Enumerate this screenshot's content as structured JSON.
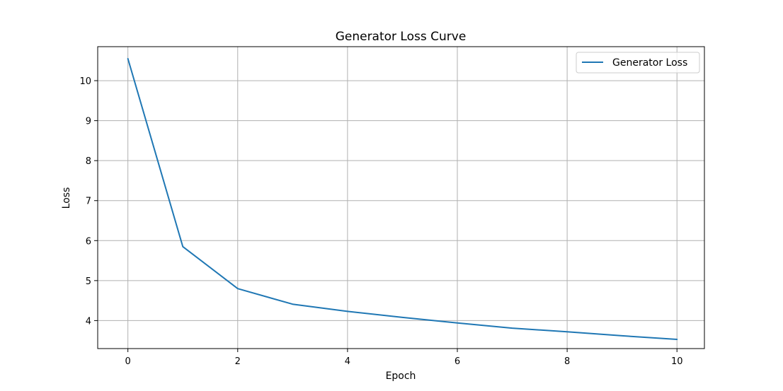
{
  "chart_data": {
    "type": "line",
    "title": "Generator Loss Curve",
    "xlabel": "Epoch",
    "ylabel": "Loss",
    "xlim": [
      -0.55,
      10.5
    ],
    "ylim": [
      3.3,
      10.85
    ],
    "xticks": [
      0,
      2,
      4,
      6,
      8,
      10
    ],
    "yticks": [
      4,
      5,
      6,
      7,
      8,
      9,
      10
    ],
    "grid": true,
    "legend_position": "top-right",
    "series": [
      {
        "name": "Generator Loss",
        "color": "#1f77b4",
        "x": [
          0,
          1,
          2,
          3,
          4,
          5,
          6,
          7,
          8,
          9,
          10
        ],
        "y": [
          10.55,
          5.85,
          4.8,
          4.41,
          4.23,
          4.08,
          3.94,
          3.81,
          3.72,
          3.62,
          3.53
        ]
      }
    ]
  }
}
